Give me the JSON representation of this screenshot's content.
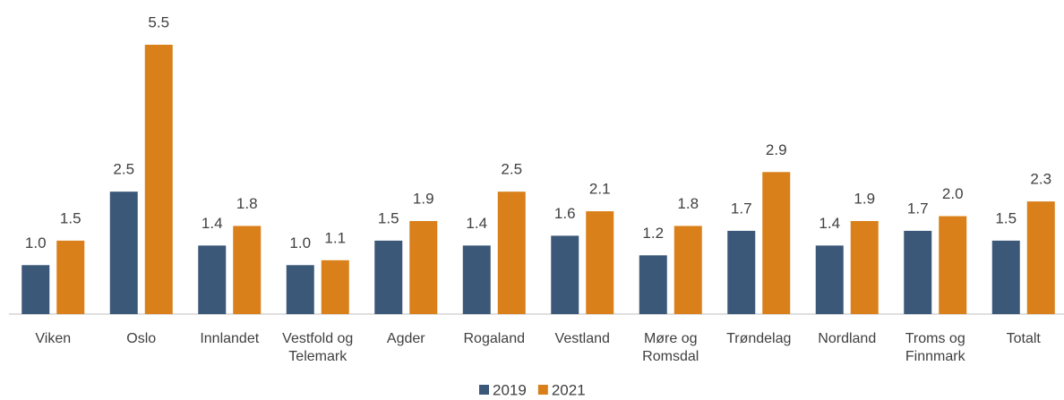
{
  "chart_data": {
    "type": "bar",
    "categories": [
      "Viken",
      "Oslo",
      "Innlandet",
      "Vestfold og Telemark",
      "Agder",
      "Rogaland",
      "Vestland",
      "Møre og Romsdal",
      "Trøndelag",
      "Nordland",
      "Troms og Finnmark",
      "Totalt"
    ],
    "series": [
      {
        "name": "2019",
        "color": "#3b5878",
        "values": [
          1.0,
          2.5,
          1.4,
          1.0,
          1.5,
          1.4,
          1.6,
          1.2,
          1.7,
          1.4,
          1.7,
          1.5
        ],
        "value_labels": [
          "1.0",
          "2.5",
          "1.4",
          "1.0",
          "1.5",
          "1.4",
          "1.6",
          "1.2",
          "1.7",
          "1.4",
          "1.7",
          "1.5"
        ]
      },
      {
        "name": "2021",
        "color": "#d9801a",
        "values": [
          1.5,
          5.5,
          1.8,
          1.1,
          1.9,
          2.5,
          2.1,
          1.8,
          2.9,
          1.9,
          2.0,
          2.3
        ],
        "value_labels": [
          "1.5",
          "5.5",
          "1.8",
          "1.1",
          "1.9",
          "2.5",
          "2.1",
          "1.8",
          "2.9",
          "1.9",
          "2.0",
          "2.3"
        ]
      }
    ],
    "legend": "bottom"
  }
}
